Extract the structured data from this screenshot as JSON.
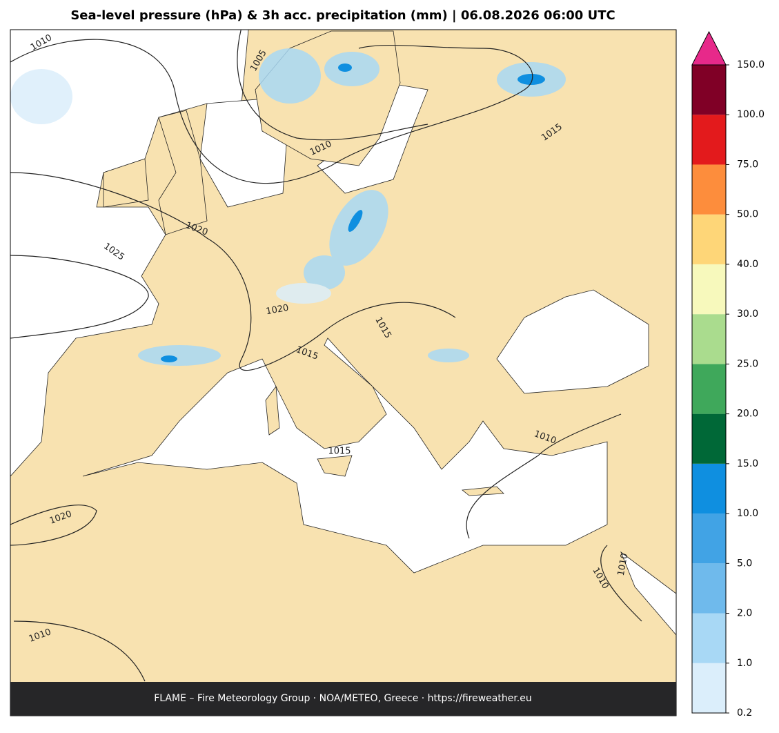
{
  "title": "Sea-level pressure (hPa) & 3h acc. precipitation (mm)  |  06.08.2026 06:00 UTC",
  "contour_labels": [
    "1010",
    "1005",
    "1010",
    "1015",
    "1020",
    "1025",
    "1020",
    "1015",
    "1015",
    "1015",
    "1010",
    "1020",
    "1010",
    "1010",
    "1010"
  ],
  "colorbar": {
    "ticks": [
      {
        "value": 0.2,
        "label": "0.2"
      },
      {
        "value": 1,
        "label": "1.0"
      },
      {
        "value": 2,
        "label": "2.0"
      },
      {
        "value": 5,
        "label": "5.0"
      },
      {
        "value": 10,
        "label": "10.0"
      },
      {
        "value": 15,
        "label": "15.0"
      },
      {
        "value": 20,
        "label": "20.0"
      },
      {
        "value": 25,
        "label": "25.0"
      },
      {
        "value": 30,
        "label": "30.0"
      },
      {
        "value": 40,
        "label": "40.0"
      },
      {
        "value": 50,
        "label": "50.0"
      },
      {
        "value": 75,
        "label": "75.0"
      },
      {
        "value": 100,
        "label": "100.0"
      },
      {
        "value": 150,
        "label": "150.0"
      }
    ],
    "colors": [
      "#dbeefb",
      "#a8d8f5",
      "#6fbaec",
      "#41a3e5",
      "#0f8fe0",
      "#006837",
      "#3fa85b",
      "#aadc8e",
      "#f7f9bc",
      "#fed678",
      "#fd8d3c",
      "#e31a1c",
      "#800026"
    ],
    "extend_color": "#e7298a"
  },
  "footer": "FLAME – Fire Meteorology Group · NOA/METEO, Greece · https://fireweather.eu"
}
